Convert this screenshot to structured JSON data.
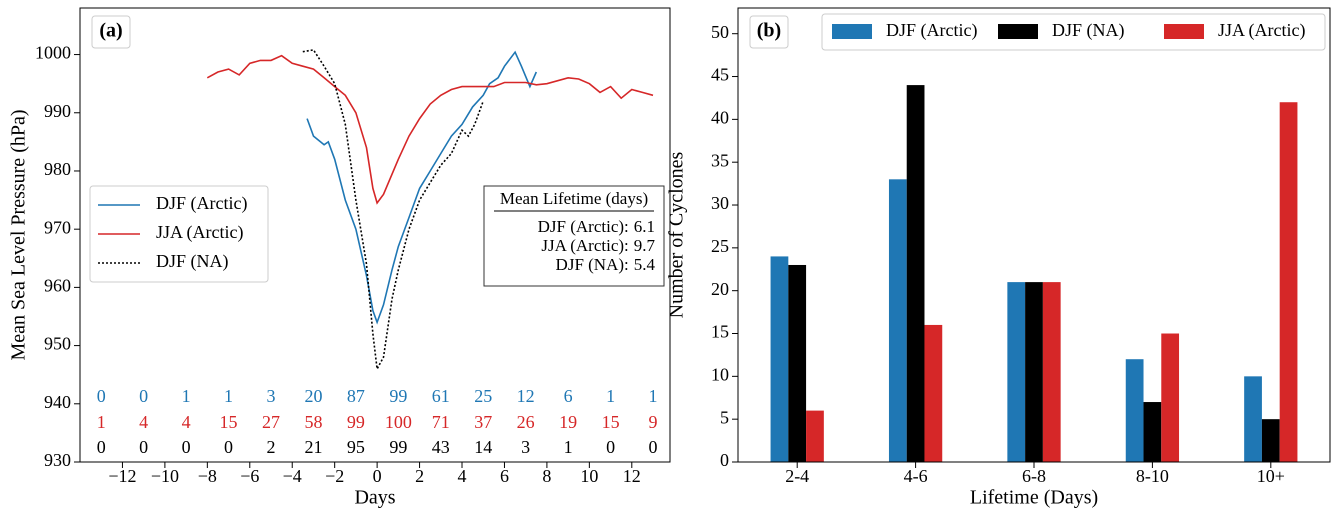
{
  "chart_data": [
    {
      "type": "line",
      "panel_label": "(a)",
      "xlabel": "Days",
      "ylabel": "Mean Sea Level Pressure (hPa)",
      "xlim": [
        -14,
        13.8
      ],
      "ylim": [
        930,
        1008
      ],
      "xticks": [
        {
          "value": -12,
          "label": "−12"
        },
        {
          "value": -10,
          "label": "−10"
        },
        {
          "value": -8,
          "label": "−8"
        },
        {
          "value": -6,
          "label": "−6"
        },
        {
          "value": -4,
          "label": "−4"
        },
        {
          "value": -2,
          "label": "−2"
        },
        0,
        2,
        4,
        6,
        8,
        10,
        12
      ],
      "yticks": [
        930,
        940,
        950,
        960,
        970,
        980,
        990,
        1000
      ],
      "series": [
        {
          "name": "DJF (Arctic)",
          "color": "#1f77b4",
          "dash": "solid",
          "x": [
            -3.3,
            -3,
            -2.5,
            -2.3,
            -2,
            -1.5,
            -1,
            -0.5,
            -0.2,
            0,
            0.3,
            0.7,
            1,
            1.5,
            2,
            2.5,
            3,
            3.5,
            4,
            4.5,
            5,
            5.3,
            5.7,
            6,
            6.5,
            6.8,
            7.2,
            7.5
          ],
          "values": [
            989,
            986,
            984.5,
            985,
            982,
            975,
            970,
            962,
            956,
            954,
            957,
            963,
            967,
            972,
            977,
            980,
            983,
            986,
            988,
            991,
            993,
            995,
            996,
            998,
            1000.4,
            998,
            994.5,
            997
          ]
        },
        {
          "name": "JJA (Arctic)",
          "color": "#d62728",
          "dash": "solid",
          "x": [
            -8,
            -7.5,
            -7,
            -6.5,
            -6,
            -5.5,
            -5,
            -4.5,
            -4,
            -3.5,
            -3,
            -2.5,
            -2,
            -1.5,
            -1,
            -0.5,
            -0.2,
            0,
            0.3,
            1,
            1.5,
            2,
            2.5,
            3,
            3.5,
            4,
            5,
            5.5,
            6,
            7,
            7.5,
            8,
            9,
            9.5,
            10,
            10.5,
            11,
            11.5,
            12,
            12.5,
            13
          ],
          "values": [
            996,
            997,
            997.5,
            996.5,
            998.5,
            999,
            999,
            999.8,
            998.5,
            998,
            997.5,
            996,
            994.5,
            993,
            990,
            984,
            977,
            974.5,
            976,
            982,
            986,
            989,
            991.5,
            993,
            994,
            994.5,
            994.5,
            994.5,
            995.2,
            995.2,
            994.8,
            995,
            996,
            995.8,
            995,
            993.5,
            994.5,
            992.5,
            994,
            993.5,
            993
          ]
        },
        {
          "name": "DJF (NA)",
          "color": "#000000",
          "dash": "dotted",
          "x": [
            -3.5,
            -3,
            -2.5,
            -2,
            -1.5,
            -1,
            -0.5,
            -0.2,
            0,
            0.3,
            0.7,
            1,
            1.5,
            2,
            2.5,
            3,
            3.5,
            4,
            4.3,
            4.6,
            5
          ],
          "values": [
            1000.5,
            1000.8,
            998,
            995,
            988,
            975,
            964,
            952,
            946,
            948,
            958,
            963,
            970,
            975,
            978,
            981,
            983,
            987,
            986,
            988,
            992
          ]
        }
      ],
      "count_x": [
        -13,
        -11,
        -9,
        -7,
        -5,
        -3,
        -1,
        1,
        3,
        5,
        7,
        9,
        11,
        13
      ],
      "count_rows": [
        {
          "color": "#1f77b4",
          "values": [
            0,
            0,
            1,
            1,
            3,
            20,
            87,
            99,
            61,
            25,
            12,
            6,
            1,
            1
          ]
        },
        {
          "color": "#d62728",
          "values": [
            1,
            4,
            4,
            15,
            27,
            58,
            99,
            100,
            71,
            37,
            26,
            19,
            15,
            9
          ]
        },
        {
          "color": "#000000",
          "values": [
            0,
            0,
            0,
            0,
            2,
            21,
            95,
            99,
            43,
            14,
            3,
            1,
            0,
            0
          ]
        }
      ],
      "lifetime_box": {
        "title": "Mean Lifetime (days)",
        "items": [
          {
            "name": "DJF (Arctic):",
            "value": 6.1
          },
          {
            "name": "JJA (Arctic):",
            "value": 9.7
          },
          {
            "name": "DJF (NA):",
            "value": 5.4
          }
        ]
      }
    },
    {
      "type": "bar",
      "panel_label": "(b)",
      "xlabel": "Lifetime (Days)",
      "ylabel": "Number of Cyclones",
      "categories": [
        "2-4",
        "4-6",
        "6-8",
        "8-10",
        "10+"
      ],
      "ylim": [
        0,
        53
      ],
      "yticks": [
        0,
        5,
        10,
        15,
        20,
        25,
        30,
        35,
        40,
        45,
        50
      ],
      "series": [
        {
          "name": "DJF (Arctic)",
          "color": "#1f77b4",
          "values": [
            24,
            33,
            21,
            12,
            10
          ]
        },
        {
          "name": "DJF (NA)",
          "color": "#000000",
          "values": [
            23,
            44,
            21,
            7,
            5
          ]
        },
        {
          "name": "JJA (Arctic)",
          "color": "#d62728",
          "values": [
            6,
            16,
            21,
            15,
            42
          ]
        }
      ]
    }
  ]
}
